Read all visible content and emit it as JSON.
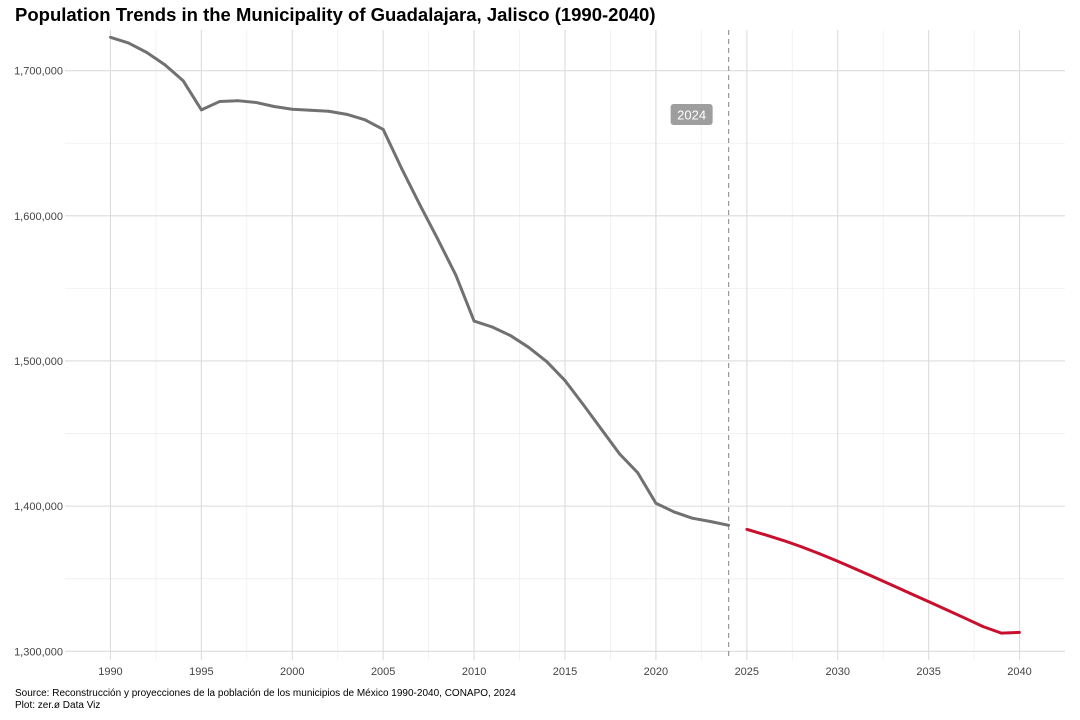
{
  "chart_data": {
    "type": "line",
    "title": "Population Trends in the Municipality of Guadalajara, Jalisco (1990-2040)",
    "xlabel": "",
    "ylabel": "",
    "xlim": [
      1987.5,
      2042.5
    ],
    "ylim": [
      1294000,
      1728000
    ],
    "x_ticks": [
      1990,
      1995,
      2000,
      2005,
      2010,
      2015,
      2020,
      2025,
      2030,
      2035,
      2040
    ],
    "y_ticks": [
      1300000,
      1400000,
      1500000,
      1600000,
      1700000
    ],
    "y_tick_labels": [
      "1,300,000",
      "1,400,000",
      "1,500,000",
      "1,600,000",
      "1,700,000"
    ],
    "grid": true,
    "reference_line": {
      "x": 2024,
      "label": "2024",
      "style": "dashed"
    },
    "series": [
      {
        "kind": "historical",
        "color": "#717171",
        "points": [
          [
            1990,
            1723000
          ],
          [
            1991,
            1719000
          ],
          [
            1992,
            1712500
          ],
          [
            1993,
            1704000
          ],
          [
            1994,
            1693000
          ],
          [
            1995,
            1673000
          ],
          [
            1996,
            1678700
          ],
          [
            1997,
            1679300
          ],
          [
            1998,
            1678100
          ],
          [
            1999,
            1675300
          ],
          [
            2000,
            1673400
          ],
          [
            2001,
            1672700
          ],
          [
            2002,
            1672000
          ],
          [
            2003,
            1669900
          ],
          [
            2004,
            1666100
          ],
          [
            2005,
            1659500
          ],
          [
            2006,
            1633000
          ],
          [
            2007,
            1608000
          ],
          [
            2008,
            1584000
          ],
          [
            2009,
            1559000
          ],
          [
            2010,
            1527500
          ],
          [
            2011,
            1523400
          ],
          [
            2012,
            1517500
          ],
          [
            2013,
            1509400
          ],
          [
            2014,
            1499500
          ],
          [
            2015,
            1486500
          ],
          [
            2016,
            1470000
          ],
          [
            2017,
            1453000
          ],
          [
            2018,
            1436000
          ],
          [
            2019,
            1423000
          ],
          [
            2020,
            1402000
          ],
          [
            2021,
            1396000
          ],
          [
            2022,
            1391700
          ],
          [
            2023,
            1389400
          ],
          [
            2024,
            1386800
          ]
        ]
      },
      {
        "kind": "projection",
        "color": "#c8102e",
        "points": [
          [
            2025,
            1384000
          ],
          [
            2026,
            1380300
          ],
          [
            2027,
            1376400
          ],
          [
            2028,
            1372000
          ],
          [
            2029,
            1367200
          ],
          [
            2030,
            1362000
          ],
          [
            2031,
            1356600
          ],
          [
            2032,
            1351100
          ],
          [
            2033,
            1345500
          ],
          [
            2034,
            1339800
          ],
          [
            2035,
            1334200
          ],
          [
            2036,
            1328500
          ],
          [
            2037,
            1322800
          ],
          [
            2038,
            1317000
          ],
          [
            2039,
            1312500
          ],
          [
            2040,
            1313000
          ]
        ]
      }
    ]
  },
  "caption": {
    "source": "Source: Reconstrucción y proyecciones de la población de los municipios de México 1990-2040, CONAPO, 2024",
    "credit": "Plot: zer.ø Data Viz"
  },
  "colors": {
    "grid_major": "#dcdcdc",
    "grid_minor": "#efefef",
    "axis_text": "#444444",
    "reference_line": "#999999",
    "label_background": "#9e9e9e",
    "label_text": "#ffffff"
  }
}
